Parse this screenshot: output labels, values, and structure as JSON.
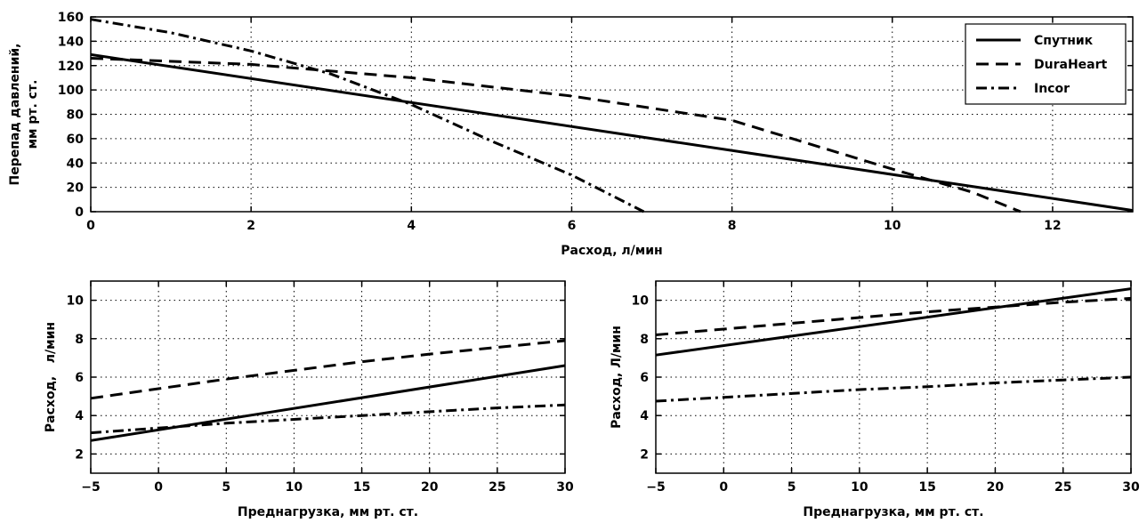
{
  "chart_data": [
    {
      "type": "line",
      "xlabel": "Расход, л/мин",
      "ylabel_lines": [
        "Перепад давлений,",
        "мм рт. ст."
      ],
      "xlim": [
        0,
        13
      ],
      "ylim": [
        0,
        160
      ],
      "xticks": [
        0,
        2,
        4,
        6,
        8,
        10,
        12
      ],
      "yticks": [
        0,
        20,
        40,
        60,
        80,
        100,
        120,
        140,
        160
      ],
      "grid": true,
      "legend": {
        "position": "top-right",
        "entries": [
          {
            "label": "Спутник",
            "style": "solid"
          },
          {
            "label": "DuraHeart",
            "style": "dashed"
          },
          {
            "label": "Incor",
            "style": "dashdot"
          }
        ]
      },
      "series": [
        {
          "style": "solid",
          "x": [
            0,
            13
          ],
          "y": [
            129,
            1
          ]
        },
        {
          "style": "dashed",
          "x": [
            0,
            2,
            4,
            6,
            8,
            10,
            11,
            11.6
          ],
          "y": [
            126,
            121,
            110,
            95,
            75,
            35,
            16,
            0
          ]
        },
        {
          "style": "dashdot",
          "x": [
            0,
            1,
            2,
            3,
            4,
            5,
            6,
            6.9
          ],
          "y": [
            158,
            147,
            132,
            113,
            88,
            58,
            30,
            0
          ]
        }
      ]
    },
    {
      "type": "line",
      "xlabel": "Преднагрузка, мм рт. ст.",
      "ylabel": "Расход,   л/мин",
      "xlim": [
        -5,
        30
      ],
      "ylim": [
        1,
        11
      ],
      "xticks": [
        -5,
        0,
        5,
        10,
        15,
        20,
        25,
        30
      ],
      "yticks": [
        2,
        4,
        6,
        8,
        10
      ],
      "grid": true,
      "series": [
        {
          "style": "solid",
          "x": [
            -5,
            30
          ],
          "y": [
            2.7,
            6.6
          ]
        },
        {
          "style": "dashed",
          "x": [
            -5,
            0,
            5,
            10,
            15,
            20,
            25,
            30
          ],
          "y": [
            4.9,
            5.4,
            5.9,
            6.35,
            6.8,
            7.2,
            7.55,
            7.9
          ]
        },
        {
          "style": "dashdot",
          "x": [
            -5,
            0,
            5,
            10,
            15,
            20,
            25,
            30
          ],
          "y": [
            3.1,
            3.35,
            3.6,
            3.8,
            4.0,
            4.2,
            4.4,
            4.55
          ]
        }
      ]
    },
    {
      "type": "line",
      "xlabel": "Преднагрузка, мм рт. ст.",
      "ylabel": "Расход, Л/мин",
      "xlim": [
        -5,
        30
      ],
      "ylim": [
        1,
        11
      ],
      "xticks": [
        -5,
        0,
        5,
        10,
        15,
        20,
        25,
        30
      ],
      "yticks": [
        2,
        4,
        6,
        8,
        10
      ],
      "grid": true,
      "series": [
        {
          "style": "solid",
          "x": [
            -5,
            30
          ],
          "y": [
            7.15,
            10.6
          ]
        },
        {
          "style": "dashed",
          "x": [
            -5,
            0,
            5,
            10,
            15,
            20,
            25,
            30
          ],
          "y": [
            8.2,
            8.5,
            8.8,
            9.1,
            9.4,
            9.65,
            9.9,
            10.1
          ]
        },
        {
          "style": "dashdot",
          "x": [
            -5,
            0,
            5,
            10,
            15,
            20,
            25,
            30
          ],
          "y": [
            4.75,
            4.95,
            5.15,
            5.35,
            5.5,
            5.7,
            5.85,
            6.0
          ]
        }
      ]
    }
  ]
}
